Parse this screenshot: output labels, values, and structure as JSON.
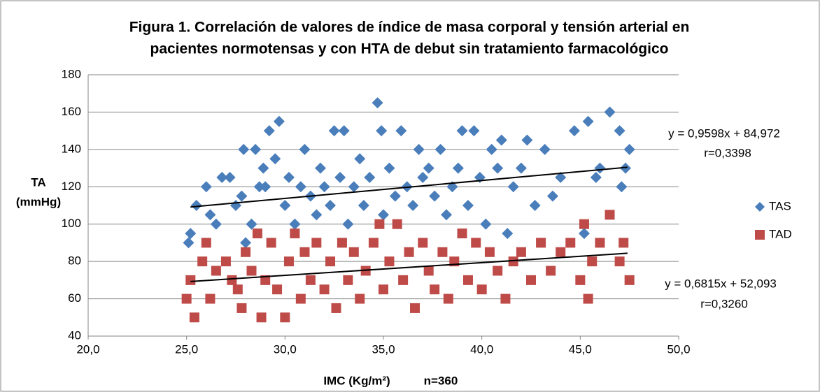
{
  "chart_data": {
    "type": "scatter",
    "title": [
      "Figura 1. Correlación de valores de índice de masa corporal y tensión arterial en",
      "pacientes normotensas y con HTA de debut sin tratamiento farmacológico"
    ],
    "x_label": "IMC (Kg/m²)",
    "note": "n=360",
    "y_label": [
      "TA",
      "(mmHg)"
    ],
    "xlim": [
      20,
      50
    ],
    "xticks": [
      {
        "value": 20,
        "label": "20,0"
      },
      {
        "value": 25,
        "label": "25,0"
      },
      {
        "value": 30,
        "label": "30,0"
      },
      {
        "value": 35,
        "label": "35,0"
      },
      {
        "value": 40,
        "label": "40,0"
      },
      {
        "value": 45,
        "label": "45,0"
      },
      {
        "value": 50,
        "label": "50,0"
      }
    ],
    "ylim": [
      40,
      180
    ],
    "yticks": [
      40,
      60,
      80,
      100,
      120,
      140,
      160,
      180
    ],
    "grid": true,
    "legend": "right",
    "series": [
      {
        "name": "TAS",
        "color": "#4a7ebb",
        "marker": "diamond",
        "points": [
          [
            25.1,
            90
          ],
          [
            25.2,
            95
          ],
          [
            25.5,
            110
          ],
          [
            26,
            120
          ],
          [
            26.2,
            105
          ],
          [
            26.5,
            100
          ],
          [
            26.8,
            125
          ],
          [
            27.2,
            125
          ],
          [
            27.5,
            110
          ],
          [
            27.8,
            115
          ],
          [
            27.9,
            140
          ],
          [
            28,
            90
          ],
          [
            28.3,
            100
          ],
          [
            28.5,
            140
          ],
          [
            28.7,
            120
          ],
          [
            28.9,
            130
          ],
          [
            29,
            120
          ],
          [
            29.2,
            150
          ],
          [
            29.5,
            135
          ],
          [
            29.7,
            155
          ],
          [
            30,
            110
          ],
          [
            30.2,
            125
          ],
          [
            30.5,
            100
          ],
          [
            30.8,
            120
          ],
          [
            31,
            140
          ],
          [
            31.3,
            115
          ],
          [
            31.6,
            105
          ],
          [
            31.8,
            130
          ],
          [
            32,
            120
          ],
          [
            32.3,
            110
          ],
          [
            32.5,
            150
          ],
          [
            32.8,
            125
          ],
          [
            33,
            150
          ],
          [
            33.2,
            100
          ],
          [
            33.5,
            120
          ],
          [
            33.8,
            135
          ],
          [
            34,
            110
          ],
          [
            34.3,
            125
          ],
          [
            34.7,
            165
          ],
          [
            34.9,
            150
          ],
          [
            35,
            105
          ],
          [
            35.3,
            130
          ],
          [
            35.6,
            115
          ],
          [
            35.9,
            150
          ],
          [
            36.2,
            120
          ],
          [
            36.5,
            110
          ],
          [
            36.8,
            140
          ],
          [
            37,
            125
          ],
          [
            37.3,
            130
          ],
          [
            37.6,
            115
          ],
          [
            37.9,
            140
          ],
          [
            38.2,
            105
          ],
          [
            38.5,
            120
          ],
          [
            38.8,
            130
          ],
          [
            39,
            150
          ],
          [
            39.3,
            110
          ],
          [
            39.6,
            150
          ],
          [
            39.9,
            125
          ],
          [
            40.2,
            100
          ],
          [
            40.5,
            140
          ],
          [
            40.8,
            130
          ],
          [
            41,
            145
          ],
          [
            41.3,
            95
          ],
          [
            41.6,
            120
          ],
          [
            42,
            130
          ],
          [
            42.3,
            145
          ],
          [
            42.7,
            110
          ],
          [
            43.2,
            140
          ],
          [
            43.6,
            115
          ],
          [
            44,
            125
          ],
          [
            44.7,
            150
          ],
          [
            45.2,
            95
          ],
          [
            45.4,
            155
          ],
          [
            45.8,
            125
          ],
          [
            46,
            130
          ],
          [
            46.5,
            160
          ],
          [
            47,
            150
          ],
          [
            47.1,
            120
          ],
          [
            47.5,
            140
          ],
          [
            47.3,
            130
          ]
        ],
        "trendline": {
          "slope": 0.9598,
          "intercept": 84.972,
          "x": [
            25.2,
            47.4
          ],
          "equation": "y = 0,9598x + 84,972",
          "r": "r=0,3398"
        }
      },
      {
        "name": "TAD",
        "color": "#be4b48",
        "marker": "square",
        "points": [
          [
            25,
            60
          ],
          [
            25.2,
            70
          ],
          [
            25.4,
            50
          ],
          [
            25.8,
            80
          ],
          [
            26,
            90
          ],
          [
            26.2,
            60
          ],
          [
            26.5,
            75
          ],
          [
            27,
            80
          ],
          [
            27.3,
            70
          ],
          [
            27.6,
            65
          ],
          [
            27.8,
            55
          ],
          [
            28,
            85
          ],
          [
            28.3,
            75
          ],
          [
            28.6,
            95
          ],
          [
            28.8,
            50
          ],
          [
            29,
            70
          ],
          [
            29.3,
            90
          ],
          [
            29.6,
            65
          ],
          [
            30,
            50
          ],
          [
            30.2,
            80
          ],
          [
            30.5,
            95
          ],
          [
            30.8,
            60
          ],
          [
            31,
            85
          ],
          [
            31.3,
            70
          ],
          [
            31.6,
            90
          ],
          [
            32,
            65
          ],
          [
            32.3,
            80
          ],
          [
            32.6,
            55
          ],
          [
            32.9,
            90
          ],
          [
            33.2,
            70
          ],
          [
            33.5,
            85
          ],
          [
            33.8,
            60
          ],
          [
            34.1,
            75
          ],
          [
            34.5,
            90
          ],
          [
            34.8,
            100
          ],
          [
            35,
            65
          ],
          [
            35.3,
            80
          ],
          [
            35.7,
            100
          ],
          [
            36,
            70
          ],
          [
            36.3,
            85
          ],
          [
            36.6,
            55
          ],
          [
            37,
            90
          ],
          [
            37.3,
            75
          ],
          [
            37.6,
            65
          ],
          [
            38,
            85
          ],
          [
            38.3,
            60
          ],
          [
            38.6,
            80
          ],
          [
            39,
            95
          ],
          [
            39.3,
            70
          ],
          [
            39.7,
            90
          ],
          [
            40,
            65
          ],
          [
            40.4,
            85
          ],
          [
            40.8,
            75
          ],
          [
            41.2,
            60
          ],
          [
            41.6,
            80
          ],
          [
            42,
            85
          ],
          [
            42.5,
            70
          ],
          [
            43,
            90
          ],
          [
            43.5,
            75
          ],
          [
            44,
            85
          ],
          [
            44.5,
            90
          ],
          [
            45,
            70
          ],
          [
            45.2,
            100
          ],
          [
            45.4,
            60
          ],
          [
            45.6,
            80
          ],
          [
            46,
            90
          ],
          [
            46.5,
            105
          ],
          [
            47,
            80
          ],
          [
            47.2,
            90
          ],
          [
            47.5,
            70
          ]
        ],
        "trendline": {
          "slope": 0.6815,
          "intercept": 52.093,
          "x": [
            25.2,
            47.4
          ],
          "equation": "y = 0,6815x + 52,093",
          "r": "r=0,3260"
        }
      }
    ]
  }
}
